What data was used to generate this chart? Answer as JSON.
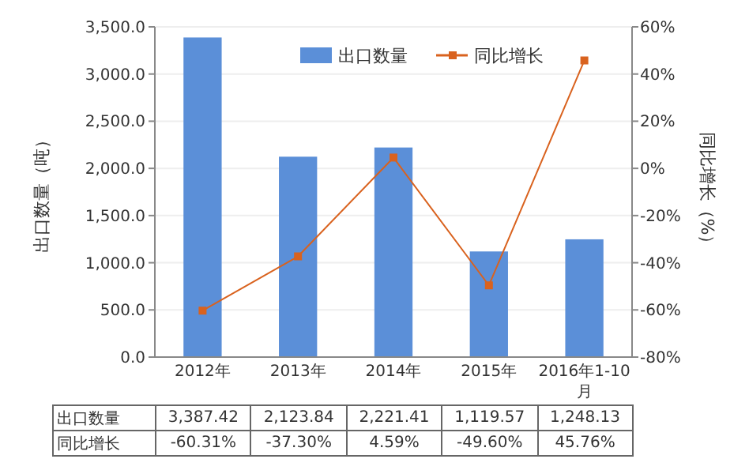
{
  "chart_data": {
    "type": "bar",
    "ylabel": "出口数量（吨）",
    "y2label": "同比增长（%）",
    "categories": [
      "2012年",
      "2013年",
      "2014年",
      "2015年",
      "2016年1-10月"
    ],
    "series": [
      {
        "name": "出口数量",
        "color": "#5b8fd8",
        "values": [
          3387.42,
          2123.84,
          2221.41,
          1119.57,
          1248.13
        ],
        "value_labels": [
          "3,387.42",
          "2,123.84",
          "2,221.41",
          "1,119.57",
          "1,248.13"
        ]
      },
      {
        "name": "同比增长",
        "type": "line",
        "axis": "y2",
        "color": "#d9621e",
        "marker": "square",
        "values": [
          -60.31,
          -37.3,
          4.59,
          -49.6,
          45.76
        ],
        "value_labels": [
          "-60.31%",
          "-37.30%",
          "4.59%",
          "-49.60%",
          "45.76%"
        ]
      }
    ],
    "ylim": [
      0,
      3500
    ],
    "yticks": [
      {
        "value": 0,
        "label": "0.0"
      },
      {
        "value": 500,
        "label": "500.0"
      },
      {
        "value": 1000,
        "label": "1,000.0"
      },
      {
        "value": 1500,
        "label": "1,500.0"
      },
      {
        "value": 2000,
        "label": "2,000.0"
      },
      {
        "value": 2500,
        "label": "2,500.0"
      },
      {
        "value": 3000,
        "label": "3,000.0"
      },
      {
        "value": 3500,
        "label": "3,500.0"
      }
    ],
    "y2lim": [
      -80,
      60
    ],
    "y2ticks": [
      {
        "value": -80,
        "label": "-80%"
      },
      {
        "value": -60,
        "label": "-60%"
      },
      {
        "value": -40,
        "label": "-40%"
      },
      {
        "value": -20,
        "label": "-20%"
      },
      {
        "value": 0,
        "label": "0%"
      },
      {
        "value": 20,
        "label": "20%"
      },
      {
        "value": 40,
        "label": "40%"
      },
      {
        "value": 60,
        "label": "60%"
      }
    ],
    "grid": "y",
    "legend": "top right"
  }
}
